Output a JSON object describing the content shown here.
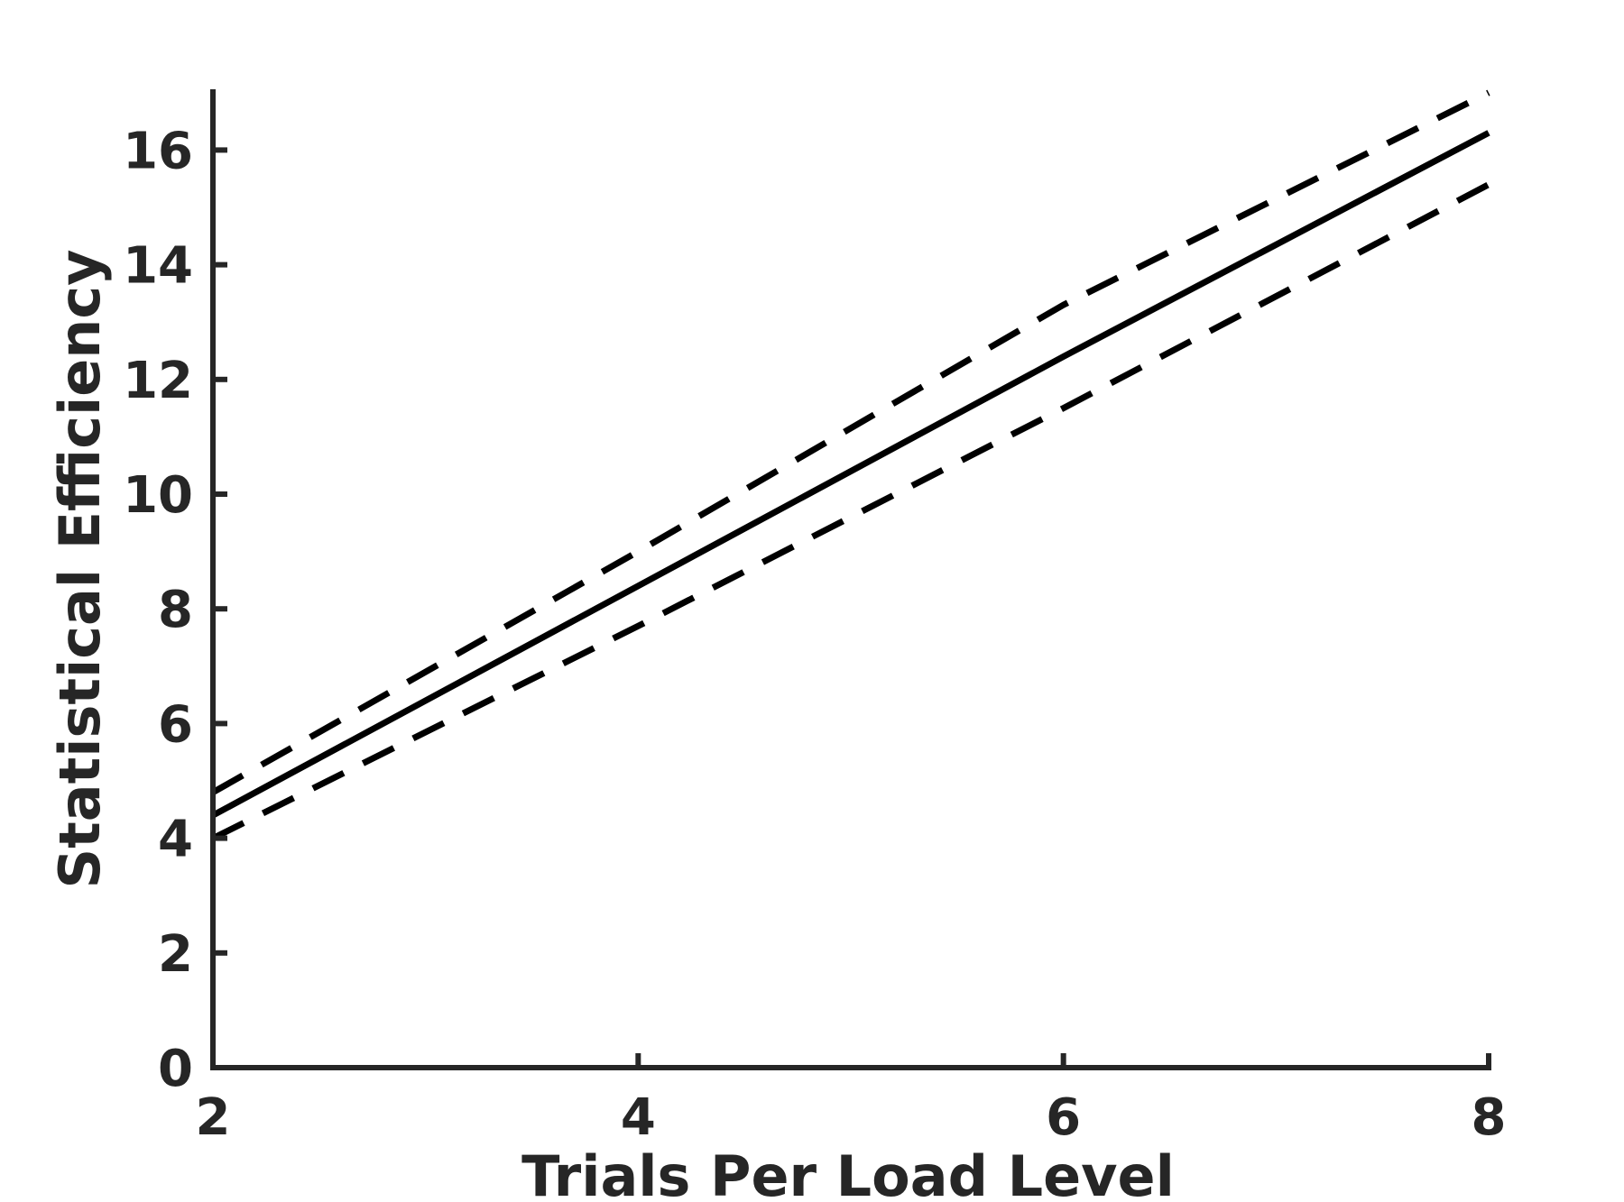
{
  "chart_data": {
    "type": "line",
    "title": "",
    "xlabel": "Trials Per Load Level",
    "ylabel": "Statistical Efficiency",
    "xlim": [
      2,
      8
    ],
    "ylim": [
      0,
      17
    ],
    "xticks": [
      2,
      4,
      6,
      8
    ],
    "yticks": [
      0,
      2,
      4,
      6,
      8,
      10,
      12,
      14,
      16
    ],
    "grid": false,
    "line_color": "#000000",
    "axis_color": "#262626",
    "series": [
      {
        "style": "dashed",
        "x": [
          2,
          4,
          6,
          8
        ],
        "y": [
          4.8,
          9.0,
          13.3,
          17.0
        ]
      },
      {
        "style": "solid",
        "x": [
          2,
          4,
          6,
          8
        ],
        "y": [
          4.4,
          8.4,
          12.4,
          16.3
        ]
      },
      {
        "style": "dashed",
        "x": [
          2,
          4,
          6,
          8
        ],
        "y": [
          4.0,
          7.7,
          11.5,
          15.4
        ]
      }
    ]
  }
}
